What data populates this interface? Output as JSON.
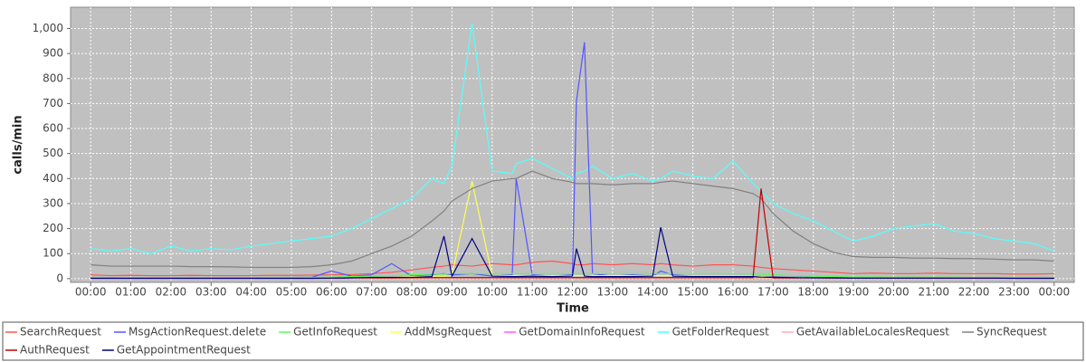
{
  "chart_data": {
    "type": "line",
    "x_label": "Time",
    "y_label": "calls/min",
    "x": [
      0,
      0.5,
      1,
      1.5,
      2,
      2.5,
      3,
      3.5,
      4,
      4.5,
      5,
      5.5,
      6,
      6.5,
      7,
      7.5,
      8,
      8.5,
      8.8,
      9,
      9.5,
      10,
      10.5,
      10.6,
      11,
      11.5,
      12,
      12.1,
      12.3,
      12.5,
      13,
      13.5,
      14,
      14.2,
      14.5,
      15,
      15.5,
      16,
      16.5,
      16.7,
      17,
      17.5,
      18,
      18.5,
      19,
      19.5,
      20,
      20.5,
      21,
      21.5,
      22,
      22.5,
      23,
      23.5,
      24
    ],
    "xlim": [
      -0.5,
      24.5
    ],
    "xticks": [
      {
        "value": 0,
        "label": "00:00"
      },
      {
        "value": 1,
        "label": "01:00"
      },
      {
        "value": 2,
        "label": "02:00"
      },
      {
        "value": 3,
        "label": "03:00"
      },
      {
        "value": 4,
        "label": "04:00"
      },
      {
        "value": 5,
        "label": "05:00"
      },
      {
        "value": 6,
        "label": "06:00"
      },
      {
        "value": 7,
        "label": "07:00"
      },
      {
        "value": 8,
        "label": "08:00"
      },
      {
        "value": 9,
        "label": "09:00"
      },
      {
        "value": 10,
        "label": "10:00"
      },
      {
        "value": 11,
        "label": "11:00"
      },
      {
        "value": 12,
        "label": "12:00"
      },
      {
        "value": 13,
        "label": "13:00"
      },
      {
        "value": 14,
        "label": "14:00"
      },
      {
        "value": 15,
        "label": "15:00"
      },
      {
        "value": 16,
        "label": "16:00"
      },
      {
        "value": 17,
        "label": "17:00"
      },
      {
        "value": 18,
        "label": "18:00"
      },
      {
        "value": 19,
        "label": "19:00"
      },
      {
        "value": 20,
        "label": "20:00"
      },
      {
        "value": 21,
        "label": "21:00"
      },
      {
        "value": 22,
        "label": "22:00"
      },
      {
        "value": 23,
        "label": "23:00"
      },
      {
        "value": 24,
        "label": "00:00"
      }
    ],
    "ylim": [
      -15,
      1085
    ],
    "yticks": [
      0,
      100,
      200,
      300,
      400,
      500,
      600,
      700,
      800,
      900,
      {
        "value": 1000,
        "label": "1,000"
      }
    ],
    "grid": true,
    "series": [
      {
        "name": "SearchRequest",
        "color": "#ff5555",
        "values": [
          15,
          12,
          13,
          12,
          12,
          13,
          12,
          12,
          12,
          13,
          13,
          14,
          15,
          16,
          20,
          25,
          35,
          45,
          50,
          55,
          50,
          60,
          55,
          55,
          65,
          70,
          60,
          55,
          55,
          60,
          55,
          60,
          55,
          60,
          55,
          50,
          55,
          55,
          50,
          45,
          40,
          35,
          30,
          25,
          20,
          22,
          20,
          20,
          22,
          20,
          20,
          20,
          18,
          18,
          20
        ]
      },
      {
        "name": "MsgActionRequest.delete",
        "color": "#5555ff",
        "values": [
          3,
          3,
          2,
          3,
          2,
          3,
          2,
          3,
          3,
          4,
          5,
          5,
          30,
          10,
          15,
          60,
          10,
          15,
          20,
          15,
          20,
          10,
          15,
          400,
          15,
          10,
          15,
          710,
          945,
          20,
          10,
          15,
          10,
          30,
          15,
          10,
          10,
          10,
          10,
          8,
          8,
          6,
          5,
          5,
          4,
          4,
          4,
          4,
          3,
          3,
          3,
          3,
          3,
          3,
          3
        ]
      },
      {
        "name": "GetInfoRequest",
        "color": "#55ff55",
        "values": [
          5,
          4,
          4,
          4,
          4,
          4,
          4,
          4,
          4,
          5,
          5,
          5,
          6,
          8,
          10,
          12,
          15,
          18,
          18,
          20,
          20,
          20,
          20,
          20,
          20,
          20,
          20,
          20,
          20,
          20,
          20,
          20,
          20,
          20,
          20,
          20,
          20,
          20,
          18,
          18,
          15,
          12,
          10,
          8,
          7,
          7,
          6,
          6,
          6,
          6,
          5,
          5,
          5,
          5,
          5
        ]
      },
      {
        "name": "AddMsgRequest",
        "color": "#ffff55",
        "values": [
          1,
          1,
          1,
          1,
          1,
          1,
          1,
          1,
          1,
          1,
          1,
          1,
          2,
          3,
          5,
          5,
          8,
          10,
          10,
          12,
          390,
          12,
          12,
          12,
          12,
          12,
          12,
          12,
          12,
          12,
          12,
          12,
          12,
          12,
          12,
          10,
          10,
          10,
          10,
          8,
          6,
          5,
          4,
          3,
          2,
          2,
          2,
          2,
          2,
          2,
          2,
          2,
          1,
          1,
          1
        ]
      },
      {
        "name": "GetDomainInfoRequest",
        "color": "#ff55ff",
        "values": [
          1,
          1,
          1,
          1,
          1,
          1,
          1,
          1,
          1,
          1,
          1,
          1,
          1,
          2,
          2,
          3,
          3,
          4,
          4,
          4,
          4,
          4,
          4,
          4,
          4,
          4,
          4,
          4,
          4,
          4,
          4,
          4,
          4,
          4,
          4,
          4,
          4,
          4,
          4,
          4,
          3,
          3,
          2,
          2,
          2,
          2,
          2,
          2,
          1,
          1,
          1,
          1,
          1,
          1,
          1
        ]
      },
      {
        "name": "GetFolderRequest",
        "color": "#55ffff",
        "values": [
          120,
          110,
          120,
          100,
          130,
          110,
          120,
          115,
          130,
          140,
          150,
          160,
          170,
          200,
          240,
          280,
          320,
          400,
          380,
          450,
          1020,
          430,
          420,
          460,
          480,
          440,
          400,
          420,
          430,
          450,
          400,
          420,
          390,
          400,
          430,
          410,
          400,
          470,
          380,
          350,
          300,
          260,
          230,
          190,
          150,
          170,
          200,
          210,
          220,
          190,
          180,
          160,
          150,
          140,
          110
        ]
      },
      {
        "name": "GetAvailableLocalesRequest",
        "color": "#ffafaf",
        "values": [
          0,
          0,
          0,
          0,
          0,
          0,
          0,
          0,
          0,
          0,
          0,
          0,
          0,
          1,
          1,
          1,
          1,
          2,
          2,
          2,
          2,
          2,
          2,
          2,
          2,
          2,
          2,
          2,
          2,
          2,
          2,
          2,
          2,
          2,
          2,
          2,
          2,
          2,
          2,
          2,
          1,
          1,
          1,
          1,
          1,
          1,
          1,
          1,
          0,
          0,
          0,
          0,
          0,
          0,
          0
        ]
      },
      {
        "name": "SyncRequest",
        "color": "#808080",
        "values": [
          55,
          50,
          50,
          50,
          50,
          48,
          48,
          47,
          45,
          45,
          45,
          48,
          55,
          70,
          100,
          130,
          170,
          230,
          270,
          310,
          360,
          390,
          400,
          400,
          430,
          400,
          385,
          380,
          380,
          380,
          375,
          380,
          380,
          385,
          390,
          380,
          370,
          360,
          340,
          320,
          260,
          190,
          140,
          105,
          88,
          85,
          85,
          82,
          82,
          80,
          80,
          78,
          75,
          75,
          70
        ]
      },
      {
        "name": "AuthRequest",
        "color": "#c00000",
        "values": [
          2,
          2,
          2,
          2,
          2,
          2,
          2,
          2,
          2,
          2,
          2,
          2,
          2,
          3,
          3,
          3,
          4,
          4,
          4,
          4,
          4,
          4,
          4,
          4,
          4,
          4,
          4,
          4,
          4,
          4,
          4,
          4,
          4,
          4,
          4,
          4,
          4,
          4,
          4,
          360,
          3,
          3,
          3,
          2,
          2,
          2,
          2,
          2,
          2,
          2,
          2,
          2,
          2,
          2,
          2
        ]
      },
      {
        "name": "GetAppointmentRequest",
        "color": "#000080",
        "values": [
          1,
          1,
          1,
          1,
          1,
          1,
          1,
          1,
          1,
          1,
          1,
          1,
          2,
          3,
          5,
          5,
          5,
          8,
          170,
          10,
          160,
          10,
          8,
          8,
          10,
          8,
          10,
          120,
          10,
          8,
          8,
          8,
          10,
          205,
          10,
          8,
          8,
          8,
          8,
          6,
          5,
          4,
          3,
          3,
          2,
          2,
          2,
          2,
          2,
          2,
          2,
          2,
          1,
          1,
          1
        ]
      }
    ]
  }
}
